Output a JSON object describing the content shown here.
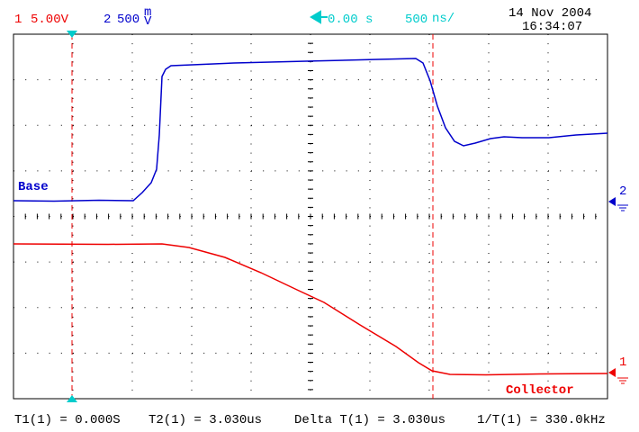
{
  "header": {
    "ch1": {
      "number": "1",
      "scale": "5.00V"
    },
    "ch2": {
      "number": "2",
      "scale": "500",
      "unit_top": "m",
      "unit_bottom": "V"
    },
    "timebase": {
      "position": "0.00 s",
      "scale": "500",
      "unit": "ns/"
    },
    "date": "14 Nov 2004",
    "time": "16:34:07"
  },
  "traces": {
    "ch2": {
      "label": "Base",
      "marker": "2"
    },
    "ch1": {
      "label": "Collector",
      "marker": "1"
    }
  },
  "footer": {
    "t1": "T1(1) = 0.000S",
    "t2": "T2(1) = 3.030us",
    "delta": "Delta T(1) = 3.030us",
    "freq": "1/T(1) = 330.0kHz"
  }
}
